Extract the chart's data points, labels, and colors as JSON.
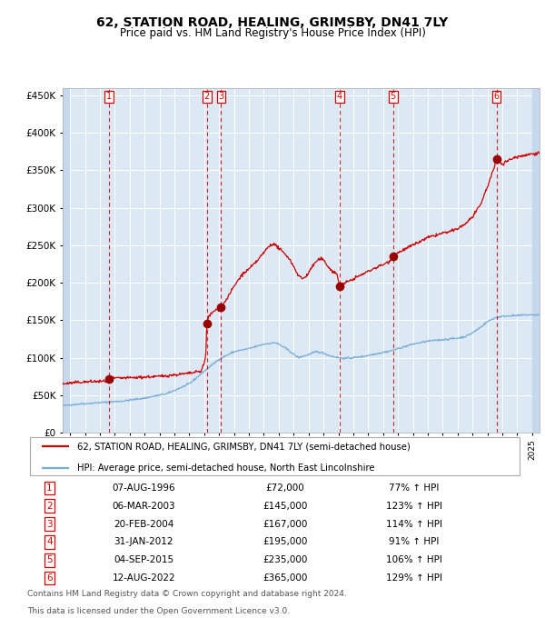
{
  "title": "62, STATION ROAD, HEALING, GRIMSBY, DN41 7LY",
  "subtitle": "Price paid vs. HM Land Registry's House Price Index (HPI)",
  "title_fontsize": 10,
  "subtitle_fontsize": 8.5,
  "background_color": "#dce9f5",
  "grid_color": "#ffffff",
  "red_line_color": "#cc0000",
  "blue_line_color": "#7aaed6",
  "sale_marker_color": "#990000",
  "dashed_line_color": "#cc0000",
  "ylim": [
    0,
    460000
  ],
  "yticks": [
    0,
    50000,
    100000,
    150000,
    200000,
    250000,
    300000,
    350000,
    400000,
    450000
  ],
  "sale_points": [
    {
      "label": "1",
      "date_num": 1996.59,
      "price": 72000
    },
    {
      "label": "2",
      "date_num": 2003.17,
      "price": 145000
    },
    {
      "label": "3",
      "date_num": 2004.13,
      "price": 167000
    },
    {
      "label": "4",
      "date_num": 2012.08,
      "price": 195000
    },
    {
      "label": "5",
      "date_num": 2015.67,
      "price": 235000
    },
    {
      "label": "6",
      "date_num": 2022.61,
      "price": 365000
    }
  ],
  "legend_line1": "62, STATION ROAD, HEALING, GRIMSBY, DN41 7LY (semi-detached house)",
  "legend_line2": "HPI: Average price, semi-detached house, North East Lincolnshire",
  "table_rows": [
    {
      "num": "1",
      "date": "07-AUG-1996",
      "price": "£72,000",
      "pct": "77% ↑ HPI"
    },
    {
      "num": "2",
      "date": "06-MAR-2003",
      "price": "£145,000",
      "pct": "123% ↑ HPI"
    },
    {
      "num": "3",
      "date": "20-FEB-2004",
      "price": "£167,000",
      "pct": "114% ↑ HPI"
    },
    {
      "num": "4",
      "date": "31-JAN-2012",
      "price": "£195,000",
      "pct": "91% ↑ HPI"
    },
    {
      "num": "5",
      "date": "04-SEP-2015",
      "price": "£235,000",
      "pct": "106% ↑ HPI"
    },
    {
      "num": "6",
      "date": "12-AUG-2022",
      "price": "£365,000",
      "pct": "129% ↑ HPI"
    }
  ],
  "footer1": "Contains HM Land Registry data © Crown copyright and database right 2024.",
  "footer2": "This data is licensed under the Open Government Licence v3.0.",
  "xlim_start": 1993.5,
  "xlim_end": 2025.5,
  "hpi_anchors": [
    [
      1993.5,
      36000
    ],
    [
      1994.5,
      38000
    ],
    [
      1996.0,
      40000
    ],
    [
      1997.5,
      42000
    ],
    [
      1999.0,
      46000
    ],
    [
      2000.5,
      52000
    ],
    [
      2002.0,
      65000
    ],
    [
      2003.0,
      82000
    ],
    [
      2004.0,
      98000
    ],
    [
      2005.0,
      108000
    ],
    [
      2006.0,
      112000
    ],
    [
      2007.0,
      118000
    ],
    [
      2007.8,
      120000
    ],
    [
      2008.5,
      112000
    ],
    [
      2009.3,
      100000
    ],
    [
      2010.0,
      104000
    ],
    [
      2010.5,
      108000
    ],
    [
      2011.0,
      106000
    ],
    [
      2011.5,
      102000
    ],
    [
      2012.0,
      100000
    ],
    [
      2012.5,
      99000
    ],
    [
      2013.0,
      100000
    ],
    [
      2013.5,
      101000
    ],
    [
      2014.0,
      103000
    ],
    [
      2014.5,
      105000
    ],
    [
      2015.0,
      107000
    ],
    [
      2015.5,
      109000
    ],
    [
      2016.0,
      112000
    ],
    [
      2016.5,
      115000
    ],
    [
      2017.0,
      118000
    ],
    [
      2017.5,
      120000
    ],
    [
      2018.0,
      122000
    ],
    [
      2018.5,
      123000
    ],
    [
      2019.0,
      124000
    ],
    [
      2019.5,
      125000
    ],
    [
      2020.0,
      126000
    ],
    [
      2020.5,
      128000
    ],
    [
      2021.0,
      133000
    ],
    [
      2021.5,
      140000
    ],
    [
      2022.0,
      148000
    ],
    [
      2022.5,
      153000
    ],
    [
      2023.0,
      155000
    ],
    [
      2023.5,
      156000
    ],
    [
      2024.0,
      156000
    ],
    [
      2024.5,
      157000
    ],
    [
      2025.5,
      157000
    ]
  ],
  "pp_anchors": [
    [
      1993.5,
      65000
    ],
    [
      1994.5,
      67000
    ],
    [
      1995.5,
      68000
    ],
    [
      1996.4,
      68500
    ],
    [
      1996.59,
      72000
    ],
    [
      1997.0,
      72500
    ],
    [
      1998.0,
      73000
    ],
    [
      1999.0,
      74000
    ],
    [
      2000.0,
      75000
    ],
    [
      2001.0,
      77000
    ],
    [
      2002.0,
      79000
    ],
    [
      2002.8,
      82000
    ],
    [
      2003.1,
      100000
    ],
    [
      2003.17,
      145000
    ],
    [
      2003.3,
      155000
    ],
    [
      2003.7,
      163000
    ],
    [
      2004.0,
      165000
    ],
    [
      2004.13,
      167000
    ],
    [
      2004.5,
      178000
    ],
    [
      2005.0,
      195000
    ],
    [
      2005.5,
      210000
    ],
    [
      2006.0,
      218000
    ],
    [
      2006.5,
      228000
    ],
    [
      2007.0,
      240000
    ],
    [
      2007.3,
      248000
    ],
    [
      2007.6,
      252000
    ],
    [
      2007.9,
      248000
    ],
    [
      2008.2,
      242000
    ],
    [
      2008.6,
      235000
    ],
    [
      2009.0,
      222000
    ],
    [
      2009.3,
      210000
    ],
    [
      2009.6,
      205000
    ],
    [
      2009.9,
      210000
    ],
    [
      2010.2,
      220000
    ],
    [
      2010.5,
      228000
    ],
    [
      2010.8,
      232000
    ],
    [
      2011.0,
      230000
    ],
    [
      2011.3,
      222000
    ],
    [
      2011.6,
      215000
    ],
    [
      2011.9,
      212000
    ],
    [
      2012.08,
      195000
    ],
    [
      2012.2,
      197000
    ],
    [
      2012.5,
      200000
    ],
    [
      2013.0,
      205000
    ],
    [
      2013.5,
      210000
    ],
    [
      2014.0,
      215000
    ],
    [
      2014.5,
      220000
    ],
    [
      2015.0,
      224000
    ],
    [
      2015.4,
      228000
    ],
    [
      2015.67,
      235000
    ],
    [
      2016.0,
      240000
    ],
    [
      2016.5,
      245000
    ],
    [
      2017.0,
      250000
    ],
    [
      2017.5,
      255000
    ],
    [
      2018.0,
      260000
    ],
    [
      2018.5,
      263000
    ],
    [
      2019.0,
      266000
    ],
    [
      2019.5,
      268000
    ],
    [
      2020.0,
      272000
    ],
    [
      2020.5,
      278000
    ],
    [
      2021.0,
      288000
    ],
    [
      2021.5,
      302000
    ],
    [
      2022.0,
      328000
    ],
    [
      2022.4,
      350000
    ],
    [
      2022.61,
      365000
    ],
    [
      2022.8,
      362000
    ],
    [
      2023.0,
      358000
    ],
    [
      2023.3,
      362000
    ],
    [
      2023.6,
      365000
    ],
    [
      2024.0,
      368000
    ],
    [
      2024.5,
      370000
    ],
    [
      2025.0,
      372000
    ],
    [
      2025.5,
      373000
    ]
  ]
}
